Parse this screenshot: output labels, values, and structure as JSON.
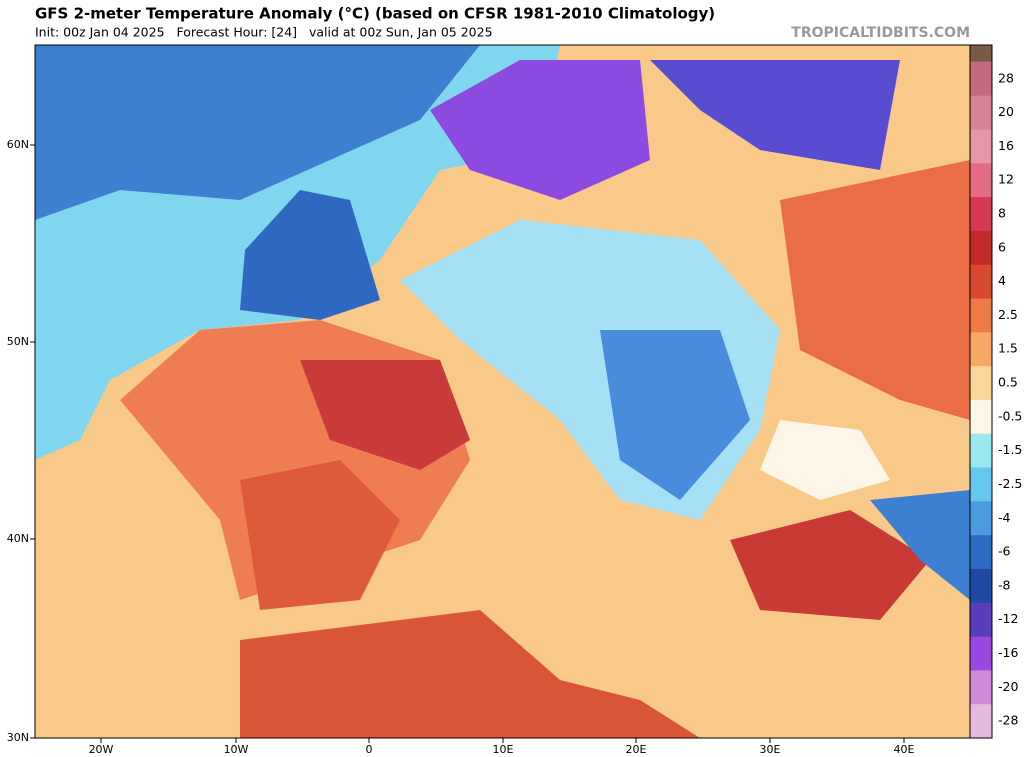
{
  "header": {
    "title": "GFS 2-meter Temperature Anomaly (°C) (based on CFSR 1981-2010 Climatology)",
    "subtitle": "Init: 00z Jan 04 2025   Forecast Hour: [24]   valid at 00z Sun, Jan 05 2025",
    "watermark": "TROPICALTIDBITS.COM"
  },
  "map": {
    "latitude_labels": [
      "60N",
      "50N",
      "40N",
      "30N"
    ],
    "longitude_labels": [
      "20W",
      "10W",
      "0",
      "10E",
      "20E",
      "30E",
      "40E"
    ]
  },
  "colorbar": [
    {
      "label": "28",
      "color": "#c46a7e"
    },
    {
      "label": "20",
      "color": "#d98295"
    },
    {
      "label": "16",
      "color": "#e597a8"
    },
    {
      "label": "12",
      "color": "#e46b84"
    },
    {
      "label": "8",
      "color": "#d53a52"
    },
    {
      "label": "6",
      "color": "#c22a2a"
    },
    {
      "label": "4",
      "color": "#da4a30"
    },
    {
      "label": "2.5",
      "color": "#ee7a47"
    },
    {
      "label": "1.5",
      "color": "#f7a766"
    },
    {
      "label": "0.5",
      "color": "#fbd79a"
    },
    {
      "label": "-0.5",
      "color": "#fdf6e6"
    },
    {
      "label": "-1.5",
      "color": "#98e8ee"
    },
    {
      "label": "-2.5",
      "color": "#64c8ee"
    },
    {
      "label": "-4",
      "color": "#4b9be0"
    },
    {
      "label": "-6",
      "color": "#2d6cc4"
    },
    {
      "label": "-8",
      "color": "#1e4aa3"
    },
    {
      "label": "-12",
      "color": "#5a3dbd"
    },
    {
      "label": "-16",
      "color": "#9b47e2"
    },
    {
      "label": "-20",
      "color": "#d08ad8"
    },
    {
      "label": "-28",
      "color": "#e6b9e0"
    }
  ]
}
